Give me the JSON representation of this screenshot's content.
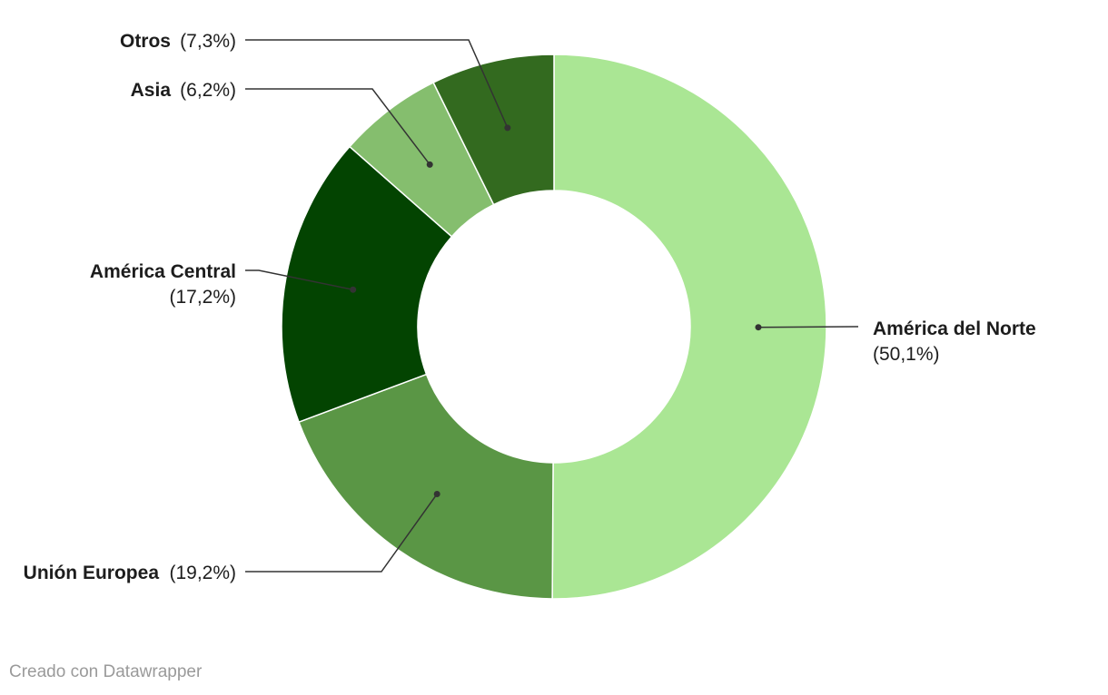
{
  "chart_data": {
    "type": "pie",
    "variant": "donut",
    "title": "",
    "categories": [
      "América del Norte",
      "Unión Europea",
      "América Central",
      "Asia",
      "Otros"
    ],
    "values": [
      50.1,
      19.2,
      17.2,
      6.2,
      7.3
    ],
    "value_labels": [
      "(50,1%)",
      "(19,2%)",
      "(17,2%)",
      "(6,2%)",
      "(7,3%)"
    ],
    "colors": [
      "#aae694",
      "#5a9645",
      "#034401",
      "#85be6e",
      "#336a1f"
    ],
    "legend": "none"
  },
  "footer": {
    "credit": "Creado con Datawrapper"
  }
}
